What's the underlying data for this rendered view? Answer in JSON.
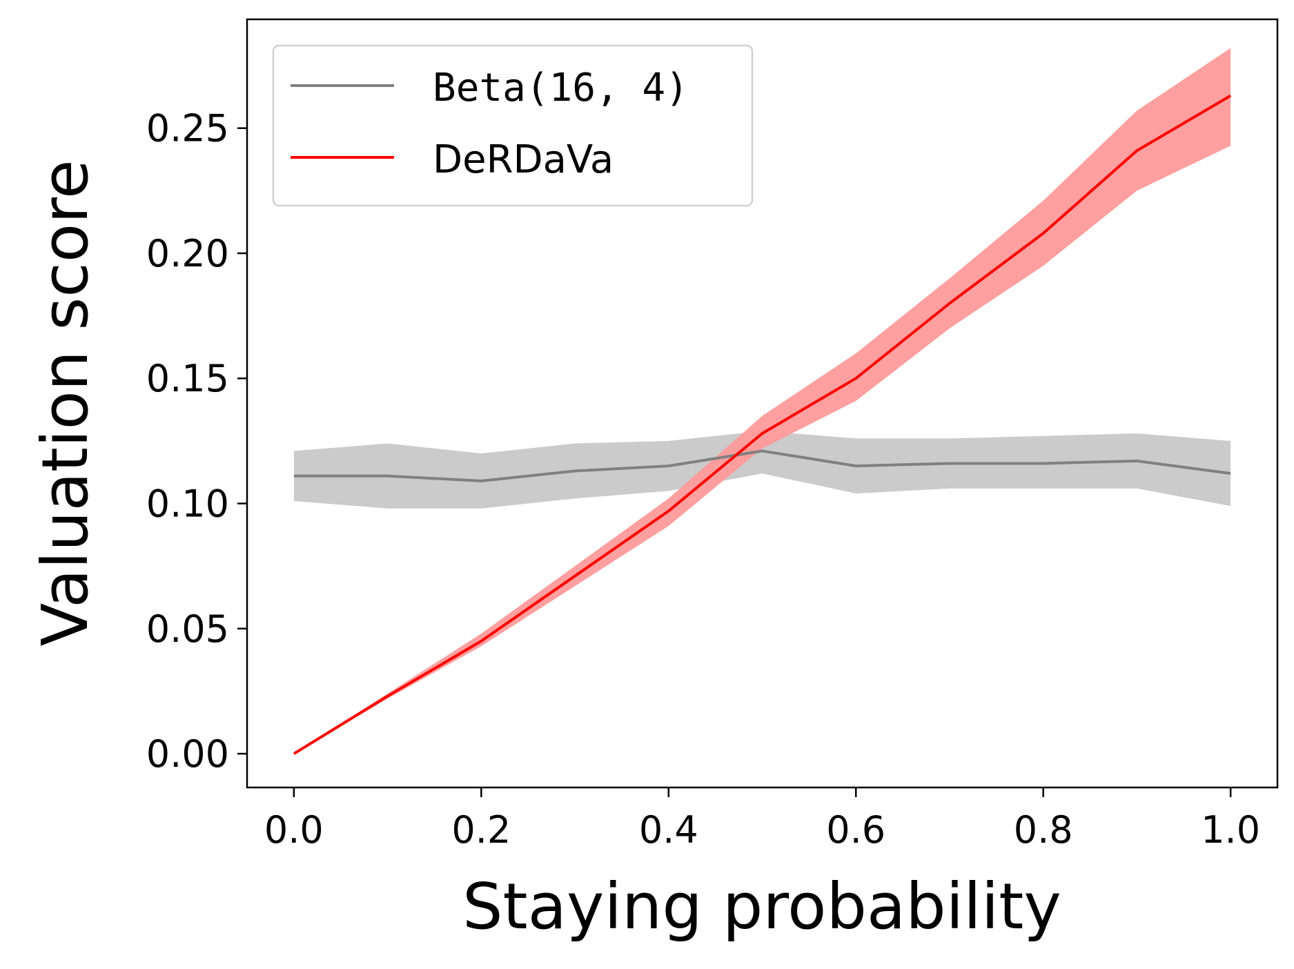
{
  "chart_data": {
    "type": "line",
    "xlabel": "Staying probability",
    "ylabel": "Valuation score",
    "xlim": [
      -0.05,
      1.05
    ],
    "ylim": [
      -0.0135,
      0.2935
    ],
    "xticks": [
      "0.0",
      "0.2",
      "0.4",
      "0.6",
      "0.8",
      "1.0"
    ],
    "yticks": [
      "0.00",
      "0.05",
      "0.10",
      "0.15",
      "0.20",
      "0.25"
    ],
    "legend_position": "upper-left",
    "x": [
      0.0,
      0.1,
      0.2,
      0.3,
      0.4,
      0.5,
      0.6,
      0.7,
      0.8,
      0.9,
      1.0
    ],
    "series": [
      {
        "name": "Beta(16, 4)",
        "color": "#808080",
        "band_color": "#c8c8c8",
        "legend_font": "mono",
        "values": [
          0.111,
          0.111,
          0.109,
          0.113,
          0.115,
          0.121,
          0.115,
          0.116,
          0.116,
          0.117,
          0.112
        ],
        "lower": [
          0.101,
          0.098,
          0.098,
          0.102,
          0.105,
          0.112,
          0.104,
          0.106,
          0.106,
          0.106,
          0.099
        ],
        "upper": [
          0.121,
          0.124,
          0.12,
          0.124,
          0.125,
          0.129,
          0.126,
          0.126,
          0.127,
          0.128,
          0.125
        ]
      },
      {
        "name": "DeRDaVa",
        "color": "#ff0000",
        "band_color": "#ff9a9a",
        "legend_font": "sans",
        "values": [
          0.0,
          0.023,
          0.045,
          0.071,
          0.097,
          0.128,
          0.15,
          0.18,
          0.208,
          0.241,
          0.263
        ],
        "lower": [
          0.0,
          0.022,
          0.043,
          0.067,
          0.091,
          0.122,
          0.141,
          0.17,
          0.195,
          0.225,
          0.243
        ],
        "upper": [
          0.0,
          0.024,
          0.048,
          0.075,
          0.102,
          0.135,
          0.16,
          0.19,
          0.221,
          0.257,
          0.282
        ]
      }
    ]
  }
}
